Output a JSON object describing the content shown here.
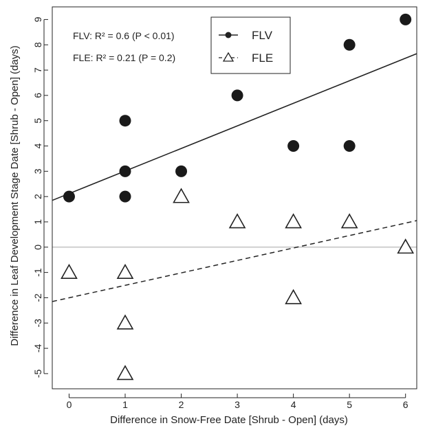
{
  "chart_data": {
    "type": "scatter",
    "xlabel": "Difference in Snow-Free Date [Shrub - Open] (days)",
    "ylabel": "Difference in Leaf Development Stage Date [Shrub - Open] (days)",
    "xlim": [
      -0.3,
      6.2
    ],
    "ylim": [
      -5.6,
      9.5
    ],
    "x_ticks": [
      0,
      1,
      2,
      3,
      4,
      5,
      6
    ],
    "y_ticks": [
      -5,
      -4,
      -3,
      -2,
      -1,
      0,
      1,
      2,
      3,
      4,
      5,
      6,
      7,
      8,
      9
    ],
    "reference_line_y": 0,
    "legend_position": "top-center",
    "annotations": [
      "FLV: R² = 0.6 (P < 0.01)",
      "FLE: R² = 0.21 (P = 0.2)"
    ],
    "series": [
      {
        "name": "FLV",
        "marker": "filled-circle",
        "line": "solid",
        "points": [
          [
            0,
            2
          ],
          [
            1,
            2
          ],
          [
            1,
            3
          ],
          [
            1,
            5
          ],
          [
            2,
            3
          ],
          [
            3,
            6
          ],
          [
            4,
            4
          ],
          [
            5,
            4
          ],
          [
            5,
            8
          ],
          [
            6,
            9
          ]
        ],
        "trend": [
          [
            -0.3,
            1.85
          ],
          [
            6.2,
            7.65
          ]
        ]
      },
      {
        "name": "FLE",
        "marker": "open-triangle",
        "line": "dashed",
        "points": [
          [
            0,
            -1
          ],
          [
            1,
            -1
          ],
          [
            1,
            -3
          ],
          [
            1,
            -5
          ],
          [
            2,
            2
          ],
          [
            3,
            1
          ],
          [
            4,
            1
          ],
          [
            4,
            -2
          ],
          [
            5,
            1
          ],
          [
            6,
            0
          ]
        ],
        "trend": [
          [
            -0.3,
            -2.15
          ],
          [
            6.2,
            1.05
          ]
        ]
      }
    ]
  }
}
